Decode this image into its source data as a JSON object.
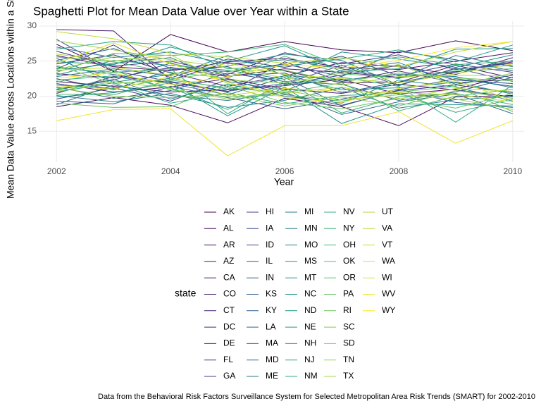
{
  "chart_data": {
    "type": "line",
    "title": "Spaghetti Plot for Mean Data Value over Year within a State",
    "x_label": "Year",
    "y_label": "Mean Data Value across Locations within a State",
    "legend_title": "state",
    "caption": "Data from the Behavioral Risk Factors Surveillance System for Selected Metropolitan Area Risk Trends (SMART) for 2002-2010",
    "x": [
      2002,
      2003,
      2004,
      2005,
      2006,
      2007,
      2008,
      2009,
      2010
    ],
    "xlim": [
      2001.7,
      2010.2
    ],
    "xticks": [
      2002,
      2004,
      2006,
      2008,
      2010
    ],
    "ylim": [
      10.6,
      30.7
    ],
    "yticks": [
      15,
      20,
      25,
      30
    ],
    "grid": true,
    "series": [
      {
        "name": "AK",
        "color": "#440154",
        "values": [
          27.4,
          23.5,
          28.8,
          26.3,
          27.8,
          26.6,
          26.2,
          27.9,
          26.5
        ]
      },
      {
        "name": "AL",
        "color": "#45065A",
        "values": [
          18.5,
          19.8,
          18.7,
          16.2,
          19.7,
          18.5,
          15.8,
          19.9,
          20.1
        ]
      },
      {
        "name": "AR",
        "color": "#460C60",
        "values": [
          22.1,
          21.4,
          20.6,
          20.9,
          21.5,
          22.4,
          20.3,
          21.0,
          23.1
        ]
      },
      {
        "name": "AZ",
        "color": "#461266",
        "values": [
          25.8,
          24.2,
          23.6,
          24.9,
          25.4,
          24.1,
          23.8,
          25.0,
          26.2
        ]
      },
      {
        "name": "CA",
        "color": "#47176B",
        "values": [
          29.5,
          29.3,
          22.3,
          24.8,
          23.6,
          21.9,
          22.0,
          24.4,
          22.6
        ]
      },
      {
        "name": "CO",
        "color": "#471D70",
        "values": [
          23.2,
          22.6,
          24.1,
          22.8,
          23.9,
          23.4,
          22.7,
          23.5,
          24.9
        ]
      },
      {
        "name": "CT",
        "color": "#472374",
        "values": [
          21.8,
          20.6,
          21.3,
          22.5,
          21.0,
          20.4,
          21.7,
          20.9,
          19.9
        ]
      },
      {
        "name": "DC",
        "color": "#462A79",
        "values": [
          24.6,
          25.9,
          23.3,
          21.4,
          22.9,
          24.8,
          24.2,
          23.1,
          25.5
        ]
      },
      {
        "name": "DE",
        "color": "#45307D",
        "values": [
          20.4,
          22.8,
          22.0,
          20.6,
          24.9,
          22.1,
          23.6,
          21.9,
          22.4
        ]
      },
      {
        "name": "FL",
        "color": "#433581",
        "values": [
          26.4,
          24.3,
          25.0,
          23.1,
          26.2,
          24.6,
          25.9,
          23.8,
          24.7
        ]
      },
      {
        "name": "GA",
        "color": "#413B84",
        "values": [
          19.6,
          21.2,
          19.3,
          22.4,
          20.3,
          18.7,
          20.8,
          21.6,
          20.5
        ]
      },
      {
        "name": "HI",
        "color": "#3F4188",
        "values": [
          23.9,
          27.3,
          22.6,
          25.3,
          24.1,
          25.7,
          22.9,
          24.6,
          23.4
        ]
      },
      {
        "name": "IA",
        "color": "#3D4789",
        "values": [
          22.5,
          20.9,
          23.8,
          24.2,
          21.7,
          23.0,
          24.4,
          22.3,
          21.8
        ]
      },
      {
        "name": "ID",
        "color": "#3B4C8A",
        "values": [
          28.1,
          23.6,
          22.1,
          20.7,
          21.8,
          24.4,
          21.5,
          24.0,
          22.1
        ]
      },
      {
        "name": "IL",
        "color": "#38528B",
        "values": [
          20.9,
          22.3,
          24.7,
          22.9,
          23.3,
          20.5,
          22.0,
          23.4,
          25.1
        ]
      },
      {
        "name": "IN",
        "color": "#36578C",
        "values": [
          25.1,
          26.8,
          24.0,
          23.5,
          24.6,
          22.8,
          26.4,
          25.2,
          23.6
        ]
      },
      {
        "name": "KS",
        "color": "#335C8D",
        "values": [
          19.3,
          18.9,
          21.4,
          19.8,
          18.2,
          19.6,
          21.0,
          19.1,
          18.4
        ]
      },
      {
        "name": "KY",
        "color": "#31628D",
        "values": [
          24.2,
          23.1,
          21.8,
          20.2,
          22.7,
          18.6,
          20.9,
          22.5,
          21.4
        ]
      },
      {
        "name": "LA",
        "color": "#2F678E",
        "values": [
          21.3,
          19.7,
          20.8,
          23.3,
          22.1,
          21.7,
          19.4,
          20.6,
          22.7
        ]
      },
      {
        "name": "MA",
        "color": "#2D6C8E",
        "values": [
          23.6,
          24.7,
          25.5,
          22.1,
          20.8,
          23.7,
          24.8,
          21.7,
          23.0
        ]
      },
      {
        "name": "MD",
        "color": "#2B718E",
        "values": [
          18.8,
          21.6,
          20.1,
          19.4,
          20.6,
          17.4,
          19.2,
          20.3,
          17.5
        ]
      },
      {
        "name": "ME",
        "color": "#29768E",
        "values": [
          27.0,
          25.5,
          26.3,
          24.6,
          25.2,
          23.9,
          22.5,
          25.8,
          24.2
        ]
      },
      {
        "name": "MI",
        "color": "#277B8E",
        "values": [
          22.8,
          23.9,
          22.9,
          25.8,
          23.0,
          22.3,
          23.1,
          22.8,
          21.2
        ]
      },
      {
        "name": "MN",
        "color": "#26808E",
        "values": [
          20.1,
          19.2,
          20.4,
          18.4,
          19.4,
          21.2,
          18.3,
          19.5,
          20.0
        ]
      },
      {
        "name": "MO",
        "color": "#24858D",
        "values": [
          25.4,
          22.0,
          23.1,
          24.3,
          26.0,
          25.1,
          21.6,
          23.9,
          24.4
        ]
      },
      {
        "name": "MS",
        "color": "#228A8D",
        "values": [
          21.0,
          22.4,
          19.6,
          21.7,
          20.0,
          19.0,
          22.3,
          21.3,
          19.3
        ]
      },
      {
        "name": "MT",
        "color": "#208F8C",
        "values": [
          23.0,
          25.1,
          24.4,
          23.7,
          22.4,
          26.3,
          25.3,
          24.1,
          25.9
        ]
      },
      {
        "name": "NC",
        "color": "#1F948B",
        "values": [
          19.9,
          20.5,
          21.9,
          17.2,
          21.3,
          16.1,
          18.9,
          18.8,
          18.6
        ]
      },
      {
        "name": "ND",
        "color": "#1F998A",
        "values": [
          24.9,
          24.5,
          27.0,
          25.0,
          27.2,
          23.5,
          23.9,
          26.7,
          26.8
        ]
      },
      {
        "name": "NE",
        "color": "#219E88",
        "values": [
          21.6,
          21.1,
          22.6,
          21.0,
          22.9,
          20.9,
          21.2,
          22.0,
          20.3
        ]
      },
      {
        "name": "NH",
        "color": "#25A386",
        "values": [
          26.7,
          27.8,
          27.3,
          23.9,
          24.3,
          25.3,
          26.6,
          24.9,
          27.3
        ]
      },
      {
        "name": "NJ",
        "color": "#2AA783",
        "values": [
          20.6,
          21.9,
          19.0,
          20.5,
          18.9,
          20.1,
          20.4,
          17.7,
          19.6
        ]
      },
      {
        "name": "NM",
        "color": "#30AC80",
        "values": [
          22.3,
          22.9,
          21.2,
          18.1,
          21.6,
          22.7,
          21.4,
          16.3,
          21.6
        ]
      },
      {
        "name": "NV",
        "color": "#37B07C",
        "values": [
          24.0,
          23.4,
          23.9,
          17.5,
          22.2,
          17.6,
          19.9,
          20.4,
          18.8
        ]
      },
      {
        "name": "NY",
        "color": "#3FB478",
        "values": [
          23.4,
          26.1,
          25.8,
          26.3,
          27.4,
          24.3,
          25.6,
          24.5,
          25.0
        ]
      },
      {
        "name": "OH",
        "color": "#48B874",
        "values": [
          20.3,
          20.2,
          22.3,
          21.2,
          20.5,
          21.9,
          17.9,
          20.0,
          21.0
        ]
      },
      {
        "name": "OK",
        "color": "#52BC6F",
        "values": [
          25.6,
          24.9,
          23.4,
          22.6,
          25.7,
          23.2,
          22.6,
          23.6,
          23.9
        ]
      },
      {
        "name": "OR",
        "color": "#5DC069",
        "values": [
          22.0,
          23.7,
          20.9,
          19.9,
          20.2,
          19.3,
          20.6,
          21.4,
          17.8
        ]
      },
      {
        "name": "PA",
        "color": "#68C463",
        "values": [
          19.0,
          18.4,
          18.5,
          21.5,
          19.1,
          18.2,
          19.7,
          18.3,
          20.4
        ]
      },
      {
        "name": "RI",
        "color": "#73C75D",
        "values": [
          24.4,
          21.8,
          22.4,
          23.6,
          23.7,
          22.0,
          23.3,
          22.6,
          22.2
        ]
      },
      {
        "name": "SC",
        "color": "#7FCB57",
        "values": [
          21.2,
          20.0,
          19.8,
          20.3,
          18.6,
          19.9,
          18.6,
          20.8,
          19.7
        ]
      },
      {
        "name": "SD",
        "color": "#8BCE50",
        "values": [
          23.8,
          25.6,
          24.8,
          22.3,
          21.9,
          23.3,
          24.5,
          21.5,
          23.3
        ]
      },
      {
        "name": "TN",
        "color": "#98D14A",
        "values": [
          20.7,
          22.1,
          21.1,
          19.6,
          20.8,
          19.5,
          20.2,
          19.6,
          18.1
        ]
      },
      {
        "name": "TX",
        "color": "#A5D443",
        "values": [
          27.9,
          26.6,
          25.2,
          24.1,
          22.6,
          21.6,
          22.8,
          23.0,
          22.9
        ]
      },
      {
        "name": "UT",
        "color": "#B2D73D",
        "values": [
          26.0,
          25.0,
          25.9,
          21.8,
          20.4,
          21.3,
          19.6,
          21.1,
          20.7
        ]
      },
      {
        "name": "VA",
        "color": "#BFDA36",
        "values": [
          29.2,
          28.2,
          26.1,
          25.6,
          24.7,
          25.5,
          24.2,
          26.3,
          27.8
        ]
      },
      {
        "name": "VT",
        "color": "#CBDC31",
        "values": [
          23.7,
          24.1,
          23.0,
          24.7,
          23.1,
          22.5,
          21.9,
          23.2,
          24.6
        ]
      },
      {
        "name": "WA",
        "color": "#D8DF2C",
        "values": [
          21.5,
          21.0,
          22.8,
          20.1,
          21.1,
          20.7,
          20.5,
          20.2,
          19.2
        ]
      },
      {
        "name": "WI",
        "color": "#E4E128",
        "values": [
          24.7,
          27.6,
          24.6,
          22.0,
          19.8,
          19.1,
          21.1,
          22.2,
          19.4
        ]
      },
      {
        "name": "WV",
        "color": "#F0E426",
        "values": [
          16.5,
          18.1,
          18.2,
          11.5,
          15.8,
          15.8,
          17.8,
          13.3,
          16.5
        ]
      },
      {
        "name": "WY",
        "color": "#FDE725",
        "values": [
          22.6,
          23.3,
          21.6,
          22.8,
          24.5,
          24.0,
          25.1,
          26.9,
          27.8
        ]
      }
    ]
  }
}
